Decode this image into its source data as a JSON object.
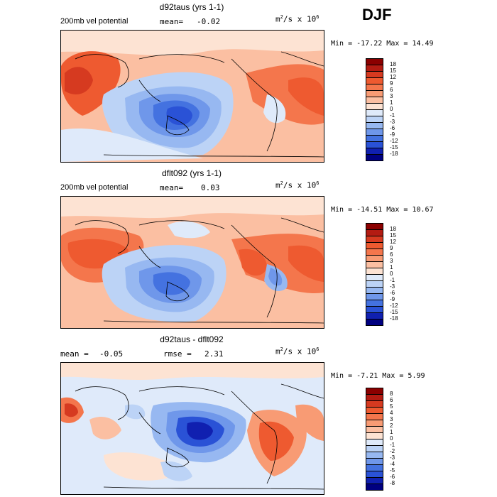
{
  "season": "DJF",
  "panels": [
    {
      "title": "d92taus (yrs 1-1)",
      "left_label": "200mb vel potential",
      "mid_label": "mean=",
      "mid_value": "-0.02",
      "units_main": "m",
      "units_sup1": "2",
      "units_mid": "/s x 10",
      "units_sup2": "6",
      "min_label": "Min =",
      "min_value": "-17.22",
      "max_label": "Max =",
      "max_value": "14.49",
      "levels": [
        "18",
        "15",
        "12",
        "9",
        "6",
        "3",
        "1",
        "0",
        "-1",
        "-3",
        "-6",
        "-9",
        "-12",
        "-15",
        "-18"
      ]
    },
    {
      "title": "dflt092 (yrs 1-1)",
      "left_label": "200mb vel potential",
      "mid_label": "mean=",
      "mid_value": "0.03",
      "units_main": "m",
      "units_sup1": "2",
      "units_mid": "/s x 10",
      "units_sup2": "6",
      "min_label": "Min =",
      "min_value": "-14.51",
      "max_label": "Max =",
      "max_value": "10.67",
      "levels": [
        "18",
        "15",
        "12",
        "9",
        "6",
        "3",
        "1",
        "0",
        "-1",
        "-3",
        "-6",
        "-9",
        "-12",
        "-15",
        "-18"
      ]
    },
    {
      "title": "d92taus - dflt092",
      "left_label": "mean =",
      "left_value": "-0.05",
      "mid_label": "rmse =",
      "mid_value": "2.31",
      "units_main": "m",
      "units_sup1": "2",
      "units_mid": "/s x 10",
      "units_sup2": "6",
      "min_label": "Min =",
      "min_value": "-7.21",
      "max_label": "Max =",
      "max_value": "5.99",
      "levels": [
        "8",
        "6",
        "5",
        "4",
        "3",
        "2",
        "1",
        "0",
        "-1",
        "-2",
        "-3",
        "-4",
        "-5",
        "-6",
        "-8"
      ]
    }
  ],
  "colors": {
    "scale": [
      "#8b0000",
      "#b31b12",
      "#d63a20",
      "#ee5a30",
      "#f4764c",
      "#f89b74",
      "#fbbfa2",
      "#fde3d3",
      "#dfeafa",
      "#bcd3f6",
      "#97b8f1",
      "#6f97ea",
      "#4472e0",
      "#2a52d6",
      "#1020b0",
      "#000080"
    ]
  }
}
